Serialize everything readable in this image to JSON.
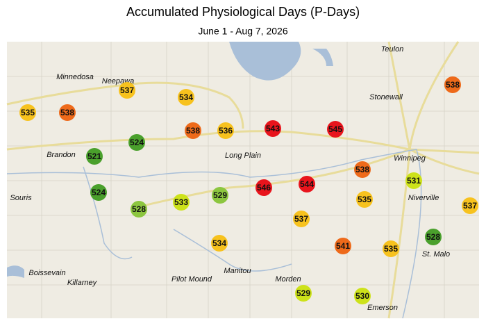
{
  "title": "Accumulated Physiological Days (P-Days)",
  "subtitle": "June 1 - Aug 7, 2026",
  "places": [
    "Teulon",
    "Minnedosa",
    "Neepawa",
    "Stonewall",
    "Winnipeg",
    "Brandon",
    "Long Plain",
    "Souris",
    "Niverville",
    "St. Malo",
    "Boissevain",
    "Killarney",
    "Pilot Mound",
    "Manitou",
    "Morden",
    "Emerson"
  ],
  "stations": [
    {
      "value": 535,
      "color": "#f7c21e"
    },
    {
      "value": 538,
      "color": "#ee6a1a"
    },
    {
      "value": 537,
      "color": "#f7c21e"
    },
    {
      "value": 534,
      "color": "#f7c21e"
    },
    {
      "value": 538,
      "color": "#ee6a1a"
    },
    {
      "value": 536,
      "color": "#f7c21e"
    },
    {
      "value": 543,
      "color": "#e8141c"
    },
    {
      "value": 545,
      "color": "#e8141c"
    },
    {
      "value": 524,
      "color": "#4aa02c"
    },
    {
      "value": 521,
      "color": "#4aa02c"
    },
    {
      "value": 538,
      "color": "#ee6a1a"
    },
    {
      "value": 531,
      "color": "#cde21a"
    },
    {
      "value": 524,
      "color": "#4aa02c"
    },
    {
      "value": 528,
      "color": "#8cc63f"
    },
    {
      "value": 533,
      "color": "#cde21a"
    },
    {
      "value": 529,
      "color": "#8cc63f"
    },
    {
      "value": 546,
      "color": "#e8141c"
    },
    {
      "value": 544,
      "color": "#e8141c"
    },
    {
      "value": 535,
      "color": "#f7c21e"
    },
    {
      "value": 537,
      "color": "#f7c21e"
    },
    {
      "value": 537,
      "color": "#f7c21e"
    },
    {
      "value": 534,
      "color": "#f7c21e"
    },
    {
      "value": 541,
      "color": "#ee6a1a"
    },
    {
      "value": 535,
      "color": "#f7c21e"
    },
    {
      "value": 528,
      "color": "#4aa02c"
    },
    {
      "value": 529,
      "color": "#cde21a"
    },
    {
      "value": 530,
      "color": "#cde21a"
    },
    {
      "value": 538,
      "color": "#ee6a1a"
    }
  ]
}
